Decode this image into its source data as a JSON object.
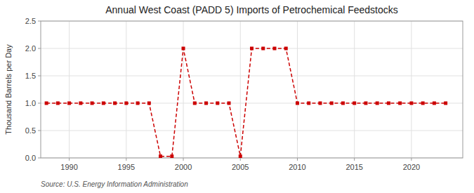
{
  "chart_data": {
    "type": "line",
    "title": "Annual West Coast (PADD 5) Imports of Petrochemical Feedstocks",
    "ylabel": "Thousand Barrels per Day",
    "annotations": [
      "Source: U.S. Energy Information Administration"
    ],
    "x": [
      1988,
      1989,
      1990,
      1991,
      1992,
      1993,
      1994,
      1995,
      1996,
      1997,
      1998,
      1999,
      2000,
      2001,
      2002,
      2003,
      2004,
      2005,
      2006,
      2007,
      2008,
      2009,
      2010,
      2011,
      2012,
      2013,
      2014,
      2015,
      2016,
      2017,
      2018,
      2019,
      2020,
      2021,
      2022,
      2023
    ],
    "values": [
      1,
      1,
      1,
      1,
      1,
      1,
      1,
      1,
      1,
      1,
      0.03,
      0.03,
      2,
      1,
      1,
      1,
      1,
      0.03,
      2,
      2,
      2,
      2,
      1,
      1,
      1,
      1,
      1,
      1,
      1,
      1,
      1,
      1,
      1,
      1,
      1,
      1
    ],
    "color": "#cc0000",
    "marker": "square",
    "line_style": "dashed",
    "grid": true,
    "xlim": [
      1987.5,
      2024.5
    ],
    "ylim": [
      0,
      2.5
    ],
    "xticks": [
      1990,
      1995,
      2000,
      2005,
      2010,
      2015,
      2020
    ],
    "yticks": [
      {
        "value": 0.0,
        "label": "0.0"
      },
      0.5,
      {
        "value": 1.0,
        "label": "1.0"
      },
      1.5,
      {
        "value": 2.0,
        "label": "2.0"
      },
      2.5
    ]
  }
}
